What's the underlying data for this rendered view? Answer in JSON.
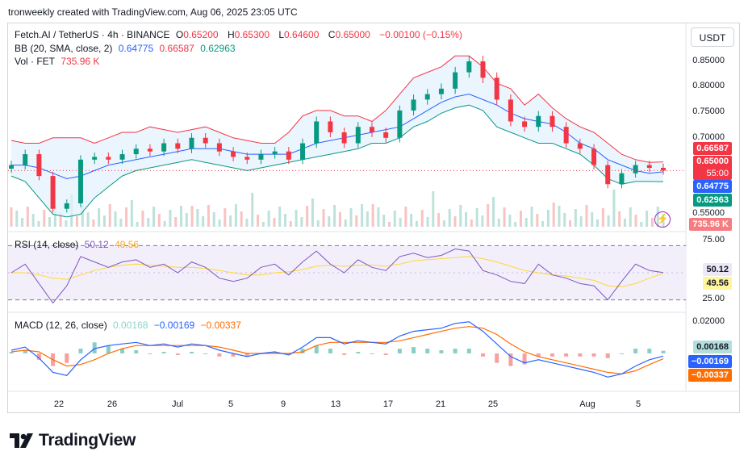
{
  "credit": "tronweekly created with TradingView.com, Aug 06, 2025 23:05 UTC",
  "quote_button": "USDT",
  "brand": "TradingView",
  "colors": {
    "up": "#089981",
    "down": "#f23645",
    "bb_basis": "#2962ff",
    "bb_upper": "#f23645",
    "bb_lower": "#089981",
    "bb_fill": "#e3f2fd",
    "rsi": "#7e57c2",
    "rsi_ma": "#fdd835",
    "macd": "#2962ff",
    "signal": "#ff6d00",
    "rsi_band": "#f3effa"
  },
  "legend": {
    "main": {
      "symbol": "Fetch.AI / TetherUS · 4h · BINANCE",
      "o_label": "O",
      "o": "0.65200",
      "h_label": "H",
      "h": "0.65300",
      "l_label": "L",
      "l": "0.64600",
      "c_label": "C",
      "c": "0.65000",
      "chg": "−0.00100 (−0.15%)"
    },
    "bb": {
      "label": "BB (20, SMA, close, 2)",
      "basis": "0.64775",
      "upper": "0.66587",
      "lower": "0.62963"
    },
    "vol": {
      "label": "Vol · FET",
      "value": "735.96 K"
    },
    "rsi": {
      "label": "RSI (14, close)",
      "rsi": "50.12",
      "ma": "49.56"
    },
    "macd": {
      "label": "MACD (12, 26, close)",
      "hist": "0.00168",
      "macd": "−0.00169",
      "signal": "−0.00337"
    }
  },
  "price_axis": [
    "0.85000",
    "0.80000",
    "0.75000",
    "0.70000",
    "0.55000"
  ],
  "rsi_axis": [
    "75.00",
    "25.00"
  ],
  "macd_axis": [
    "0.02000"
  ],
  "badges": {
    "bb_upper": "0.66587",
    "price": "0.65000",
    "countdown": "55:00",
    "bb_basis": "0.64775",
    "bb_lower": "0.62963",
    "volume": "735.96 K",
    "rsi": "50.12",
    "rsi_ma": "49.56",
    "macd_hist": "0.00168",
    "macd": "−0.00169",
    "signal": "−0.00337"
  },
  "x_axis": [
    "22",
    "26",
    "Jul",
    "5",
    "9",
    "13",
    "17",
    "21",
    "25",
    "Aug",
    "5"
  ],
  "chart_data": [
    {
      "type": "line",
      "title": "Fetch.AI / TetherUS · 4h · BINANCE",
      "x_ticks": [
        "22",
        "26",
        "Jul",
        "5",
        "9",
        "13",
        "17",
        "21",
        "25",
        "Aug",
        "5"
      ],
      "ylim": [
        0.55,
        0.89
      ],
      "series": [
        {
          "name": "close",
          "x": [
            "Jun 20",
            "Jun 21",
            "Jun 22",
            "Jun 23",
            "Jun 24",
            "Jun 25",
            "Jun 26",
            "Jun 27",
            "Jun 28",
            "Jun 29",
            "Jun 30",
            "Jul 1",
            "Jul 2",
            "Jul 3",
            "Jul 4",
            "Jul 5",
            "Jul 6",
            "Jul 7",
            "Jul 8",
            "Jul 9",
            "Jul 10",
            "Jul 11",
            "Jul 12",
            "Jul 13",
            "Jul 14",
            "Jul 15",
            "Jul 16",
            "Jul 17",
            "Jul 18",
            "Jul 19",
            "Jul 20",
            "Jul 21",
            "Jul 22",
            "Jul 23",
            "Jul 24",
            "Jul 25",
            "Jul 26",
            "Jul 27",
            "Jul 28",
            "Jul 29",
            "Jul 30",
            "Jul 31",
            "Aug 1",
            "Aug 2",
            "Aug 3",
            "Aug 4",
            "Aug 5",
            "Aug 6"
          ],
          "values": [
            0.66,
            0.68,
            0.64,
            0.58,
            0.59,
            0.67,
            0.675,
            0.67,
            0.68,
            0.69,
            0.685,
            0.7,
            0.69,
            0.71,
            0.7,
            0.685,
            0.675,
            0.67,
            0.68,
            0.685,
            0.67,
            0.7,
            0.74,
            0.72,
            0.7,
            0.73,
            0.72,
            0.71,
            0.76,
            0.78,
            0.79,
            0.8,
            0.83,
            0.85,
            0.82,
            0.78,
            0.74,
            0.73,
            0.75,
            0.73,
            0.7,
            0.69,
            0.66,
            0.625,
            0.645,
            0.66,
            0.655,
            0.65
          ]
        },
        {
          "name": "BB basis",
          "values": [
            0.66,
            0.66,
            0.655,
            0.645,
            0.635,
            0.64,
            0.65,
            0.66,
            0.665,
            0.67,
            0.675,
            0.68,
            0.685,
            0.69,
            0.69,
            0.69,
            0.685,
            0.68,
            0.68,
            0.68,
            0.68,
            0.69,
            0.7,
            0.705,
            0.71,
            0.715,
            0.72,
            0.725,
            0.73,
            0.745,
            0.76,
            0.775,
            0.785,
            0.79,
            0.78,
            0.77,
            0.755,
            0.745,
            0.74,
            0.735,
            0.72,
            0.7,
            0.69,
            0.67,
            0.66,
            0.65,
            0.645,
            0.64775
          ]
        },
        {
          "name": "BB upper",
          "values": [
            0.705,
            0.7,
            0.7,
            0.71,
            0.71,
            0.71,
            0.7,
            0.71,
            0.72,
            0.72,
            0.73,
            0.725,
            0.72,
            0.725,
            0.73,
            0.72,
            0.71,
            0.705,
            0.7,
            0.7,
            0.72,
            0.75,
            0.76,
            0.76,
            0.75,
            0.75,
            0.74,
            0.76,
            0.79,
            0.82,
            0.83,
            0.84,
            0.86,
            0.86,
            0.84,
            0.81,
            0.8,
            0.77,
            0.79,
            0.765,
            0.745,
            0.73,
            0.72,
            0.7,
            0.68,
            0.67,
            0.665,
            0.66587
          ]
        },
        {
          "name": "BB lower",
          "values": [
            0.64,
            0.63,
            0.6,
            0.57,
            0.565,
            0.57,
            0.6,
            0.62,
            0.64,
            0.65,
            0.655,
            0.66,
            0.665,
            0.67,
            0.665,
            0.66,
            0.655,
            0.65,
            0.655,
            0.66,
            0.665,
            0.67,
            0.675,
            0.68,
            0.685,
            0.69,
            0.7,
            0.7,
            0.71,
            0.73,
            0.74,
            0.755,
            0.765,
            0.77,
            0.76,
            0.73,
            0.72,
            0.71,
            0.7,
            0.7,
            0.69,
            0.68,
            0.66,
            0.635,
            0.625,
            0.63,
            0.63,
            0.62963
          ]
        }
      ]
    },
    {
      "type": "line",
      "title": "RSI (14, close)",
      "ylim": [
        15,
        85
      ],
      "series": [
        {
          "name": "RSI",
          "values": [
            50,
            58,
            40,
            22,
            38,
            65,
            60,
            55,
            60,
            62,
            55,
            58,
            50,
            60,
            55,
            45,
            42,
            45,
            55,
            58,
            48,
            60,
            70,
            58,
            50,
            62,
            55,
            52,
            65,
            68,
            64,
            66,
            72,
            70,
            52,
            48,
            42,
            40,
            58,
            48,
            45,
            40,
            38,
            25,
            42,
            58,
            52,
            50.12
          ]
        },
        {
          "name": "RSI MA",
          "values": [
            50,
            50,
            48,
            45,
            44,
            48,
            52,
            55,
            57,
            58,
            57,
            56,
            55,
            55,
            54,
            52,
            50,
            48,
            48,
            50,
            51,
            53,
            56,
            57,
            56,
            57,
            57,
            56,
            58,
            61,
            62,
            63,
            64,
            65,
            63,
            60,
            56,
            52,
            50,
            48,
            47,
            45,
            43,
            38,
            37,
            40,
            45,
            49.56
          ]
        }
      ]
    },
    {
      "type": "line",
      "title": "MACD (12, 26, close)",
      "series": [
        {
          "name": "MACD",
          "values": [
            0.002,
            0.004,
            -0.003,
            -0.012,
            -0.014,
            -0.004,
            0.003,
            0.005,
            0.006,
            0.007,
            0.005,
            0.006,
            0.004,
            0.006,
            0.005,
            0.002,
            0.0,
            -0.002,
            0.0,
            0.001,
            -0.001,
            0.004,
            0.01,
            0.01,
            0.006,
            0.008,
            0.007,
            0.006,
            0.011,
            0.014,
            0.015,
            0.016,
            0.019,
            0.02,
            0.014,
            0.006,
            -0.002,
            -0.006,
            -0.004,
            -0.006,
            -0.008,
            -0.01,
            -0.012,
            -0.015,
            -0.013,
            -0.008,
            -0.004,
            -0.00169
          ]
        },
        {
          "name": "Signal",
          "values": [
            0.001,
            0.002,
            0.001,
            -0.004,
            -0.008,
            -0.007,
            -0.004,
            0.0,
            0.003,
            0.005,
            0.005,
            0.005,
            0.005,
            0.005,
            0.005,
            0.004,
            0.002,
            0.0,
            0.0,
            0.0,
            0.0,
            0.001,
            0.005,
            0.007,
            0.007,
            0.007,
            0.007,
            0.007,
            0.008,
            0.01,
            0.012,
            0.014,
            0.016,
            0.017,
            0.016,
            0.012,
            0.006,
            0.001,
            -0.002,
            -0.004,
            -0.006,
            -0.008,
            -0.01,
            -0.012,
            -0.013,
            -0.011,
            -0.007,
            -0.00337
          ]
        }
      ]
    }
  ]
}
